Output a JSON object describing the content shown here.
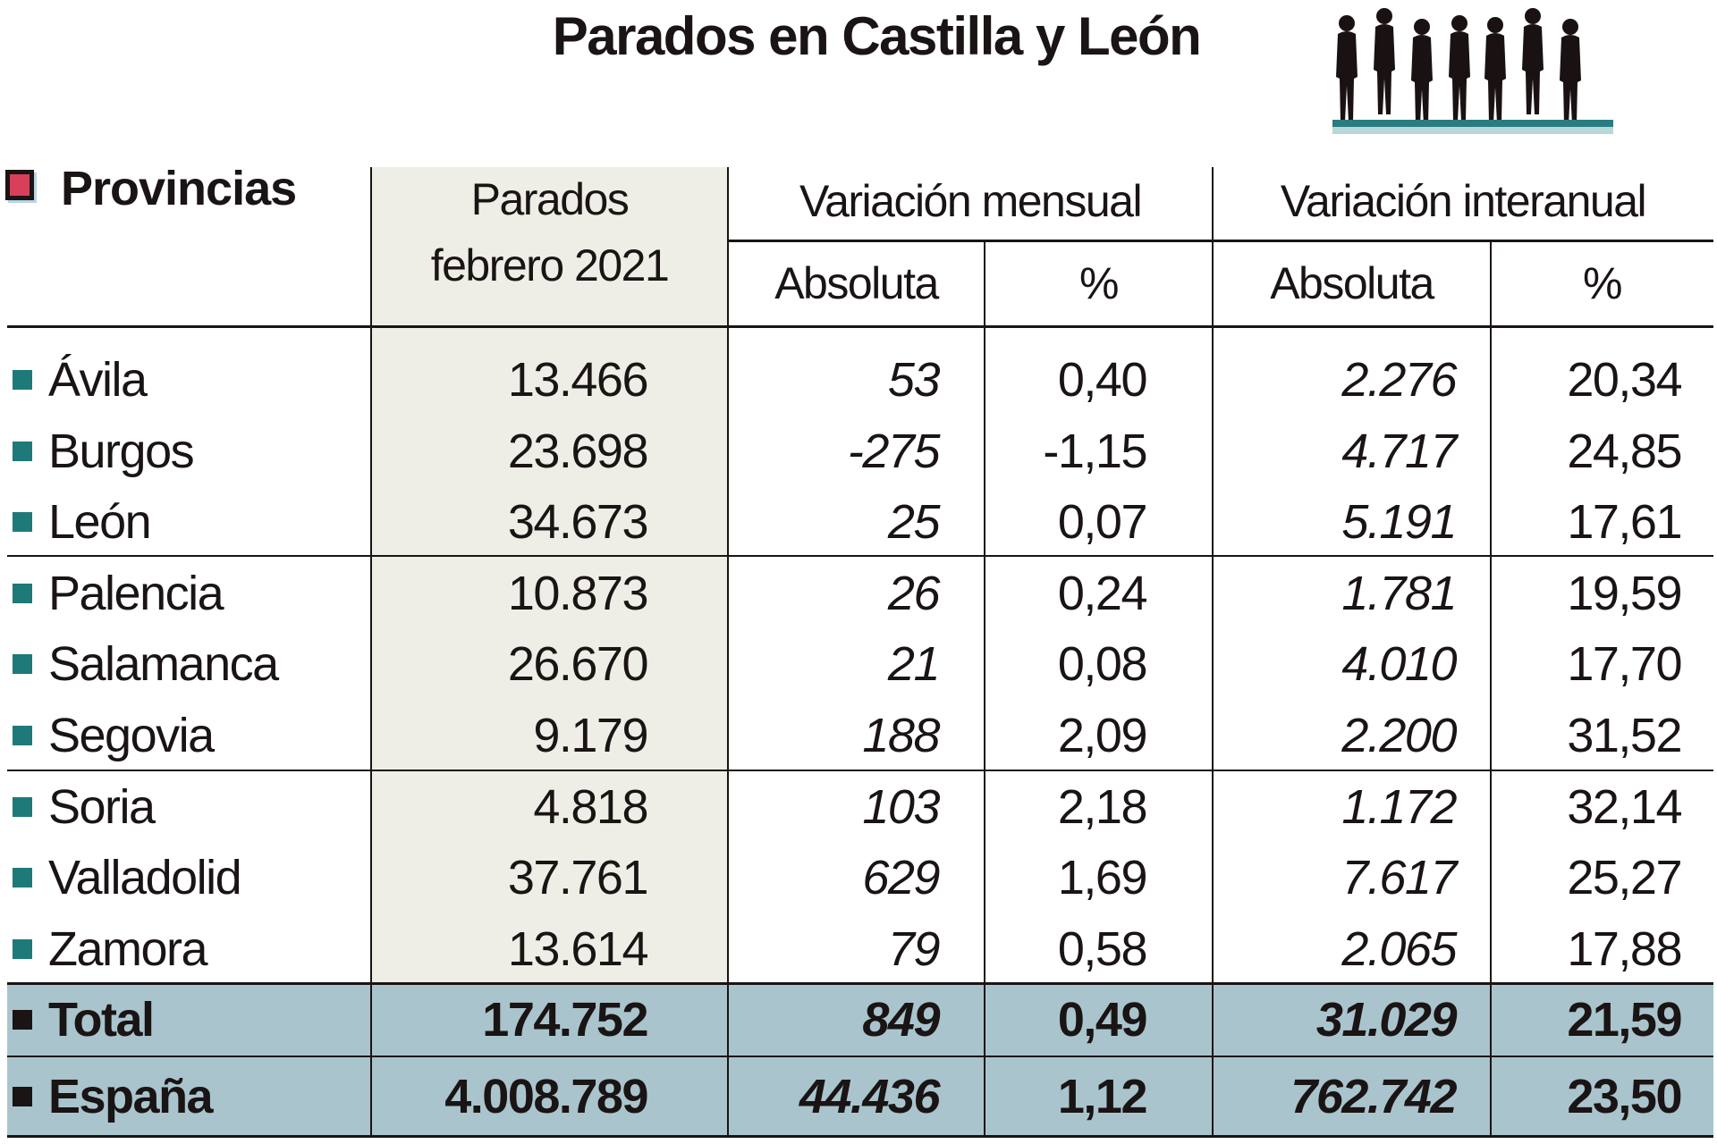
{
  "title": "Parados en Castilla y León",
  "header": {
    "provincias": "Provincias",
    "parados_line1": "Parados",
    "parados_line2": "febrero 2021",
    "variacion_mensual": "Variación mensual",
    "variacion_interanual": "Variación interanual",
    "absoluta": "Absoluta",
    "percent": "%"
  },
  "colors": {
    "accent": "#d8405a",
    "bullet": "#1e7a78",
    "total_bg": "#a9c4cc",
    "column_bg": "#eeede6"
  },
  "rows": [
    {
      "name": "Ávila",
      "parados": "13.466",
      "mens_abs": "53",
      "mens_pct": "0,40",
      "inter_abs": "2.276",
      "inter_pct": "20,34"
    },
    {
      "name": "Burgos",
      "parados": "23.698",
      "mens_abs": "-275",
      "mens_pct": "-1,15",
      "inter_abs": "4.717",
      "inter_pct": "24,85"
    },
    {
      "name": "León",
      "parados": "34.673",
      "mens_abs": "25",
      "mens_pct": "0,07",
      "inter_abs": "5.191",
      "inter_pct": "17,61"
    },
    {
      "name": "Palencia",
      "parados": "10.873",
      "mens_abs": "26",
      "mens_pct": "0,24",
      "inter_abs": "1.781",
      "inter_pct": "19,59"
    },
    {
      "name": "Salamanca",
      "parados": "26.670",
      "mens_abs": "21",
      "mens_pct": "0,08",
      "inter_abs": "4.010",
      "inter_pct": "17,70"
    },
    {
      "name": "Segovia",
      "parados": "9.179",
      "mens_abs": "188",
      "mens_pct": "2,09",
      "inter_abs": "2.200",
      "inter_pct": "31,52"
    },
    {
      "name": "Soria",
      "parados": "4.818",
      "mens_abs": "103",
      "mens_pct": "2,18",
      "inter_abs": "1.172",
      "inter_pct": "32,14"
    },
    {
      "name": "Valladolid",
      "parados": "37.761",
      "mens_abs": "629",
      "mens_pct": "1,69",
      "inter_abs": "7.617",
      "inter_pct": "25,27"
    },
    {
      "name": "Zamora",
      "parados": "13.614",
      "mens_abs": "79",
      "mens_pct": "0,58",
      "inter_abs": "2.065",
      "inter_pct": "17,88"
    }
  ],
  "totals": [
    {
      "name": "Total",
      "parados": "174.752",
      "mens_abs": "849",
      "mens_pct": "0,49",
      "inter_abs": "31.029",
      "inter_pct": "21,59"
    },
    {
      "name": "España",
      "parados": "4.008.789",
      "mens_abs": "44.436",
      "mens_pct": "1,12",
      "inter_abs": "762.742",
      "inter_pct": "23,50"
    }
  ]
}
